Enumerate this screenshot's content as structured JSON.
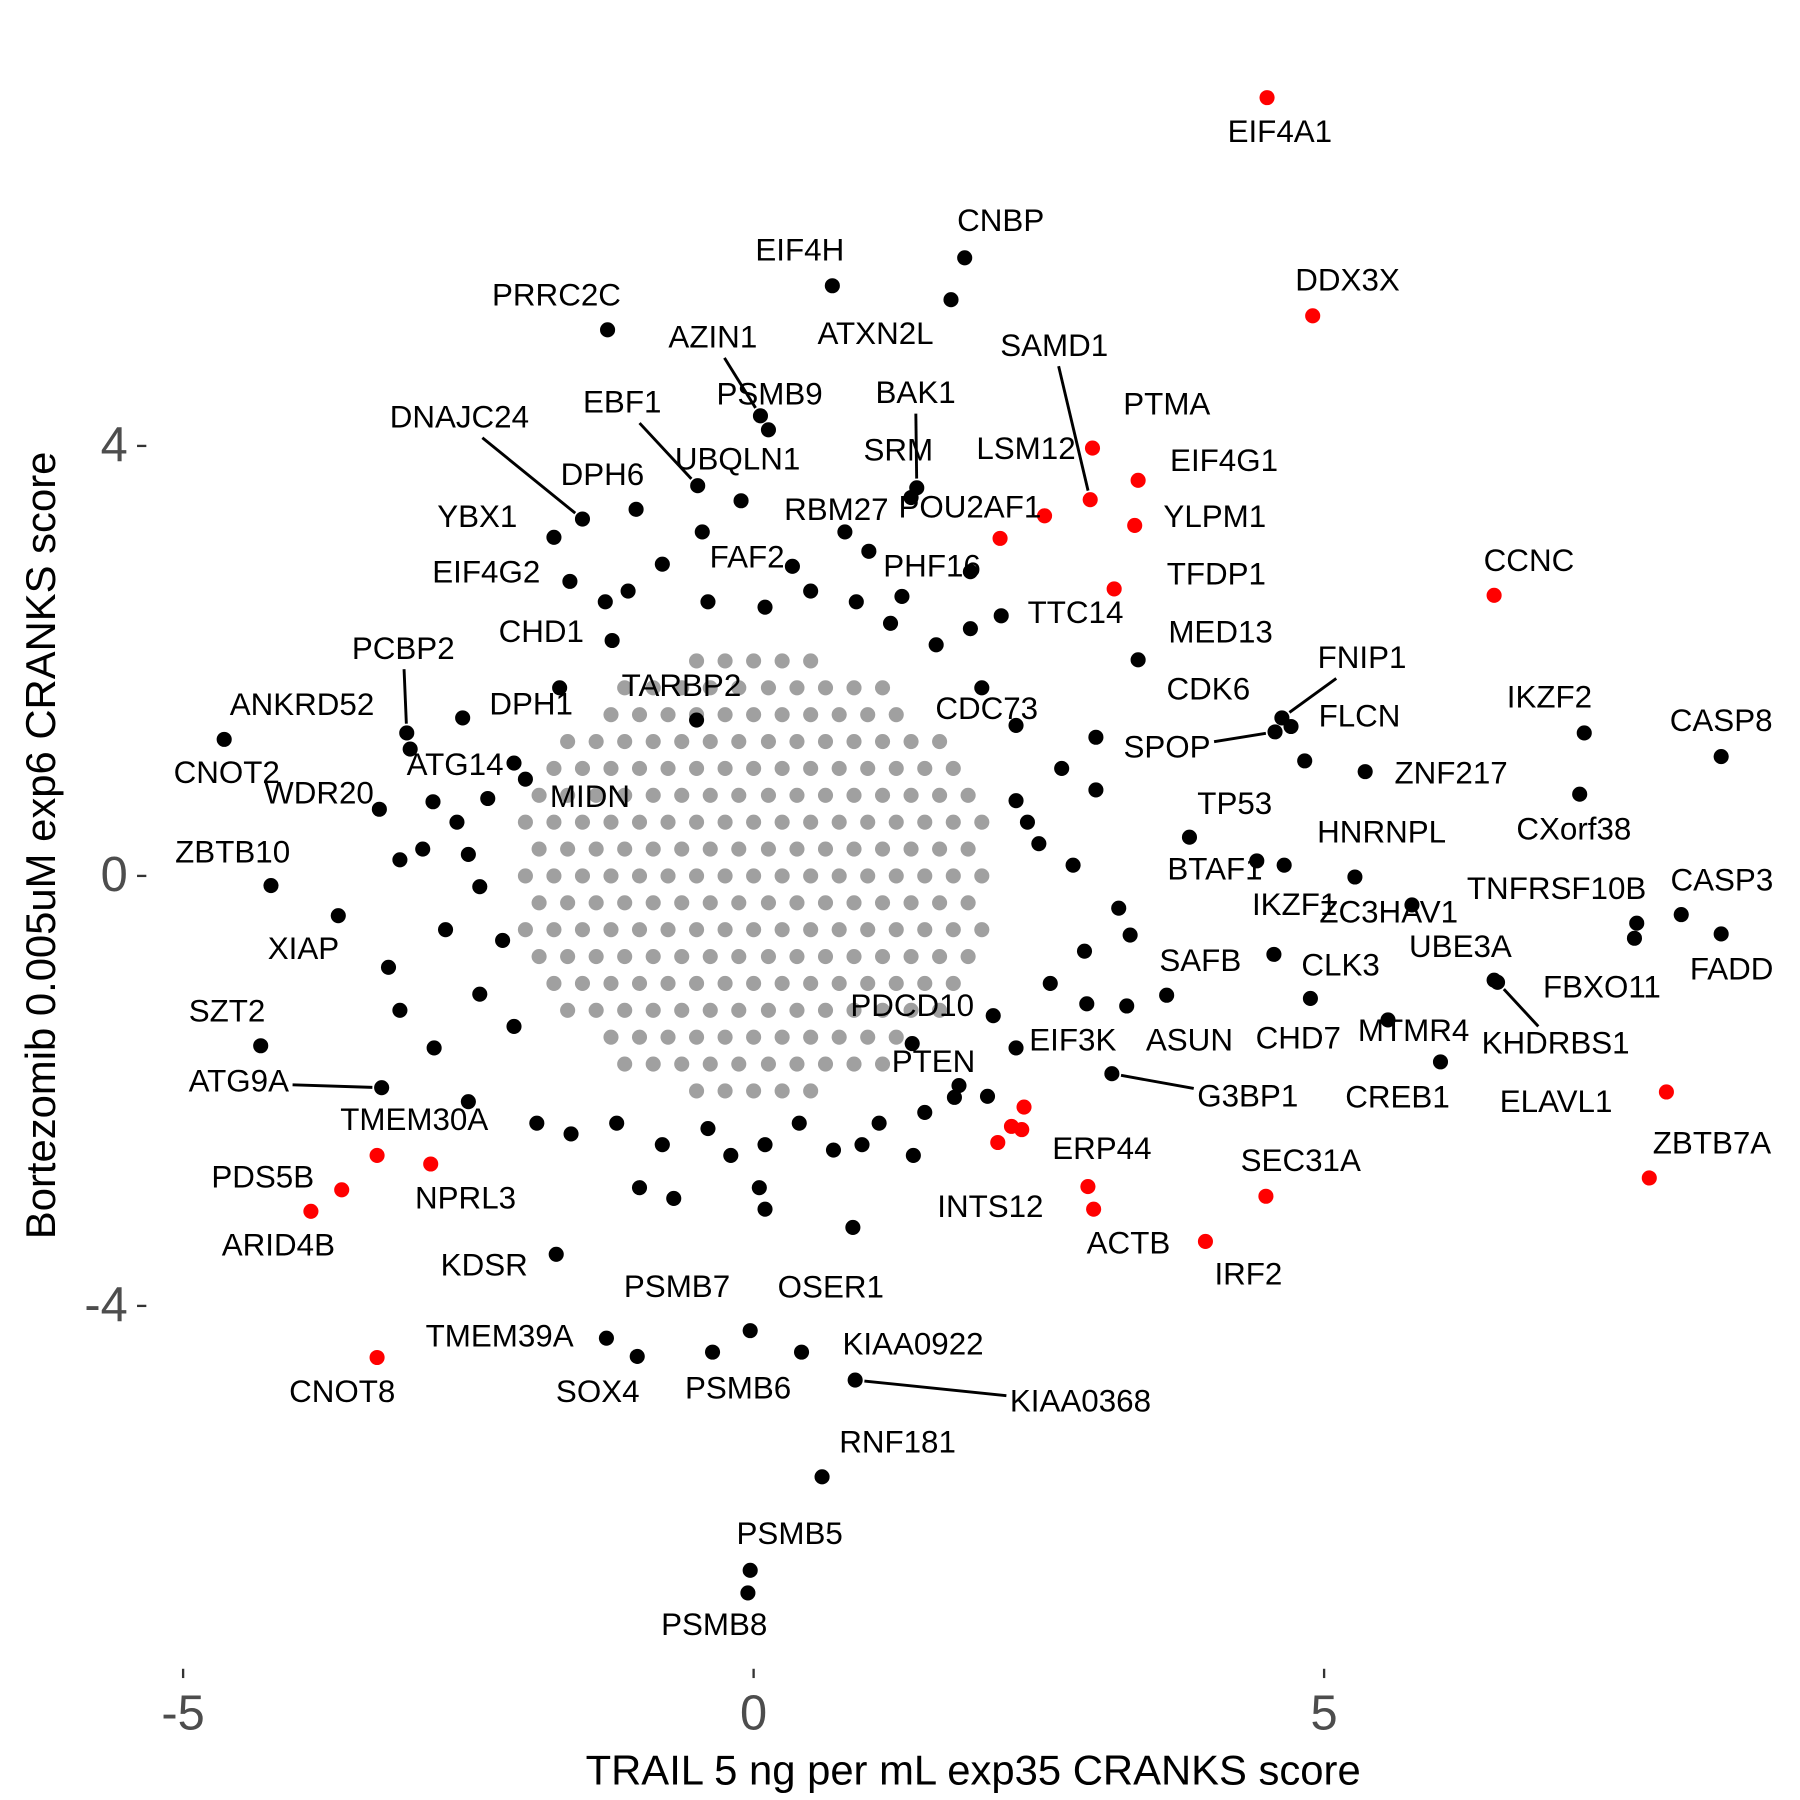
{
  "chart_data": {
    "type": "scatter",
    "xlabel": "TRAIL 5 ng per mL exp35 CRANKS score",
    "ylabel": "Bortezomib 0.005uM exp6 CRANKS score",
    "xlim": [
      -5.18,
      9.12
    ],
    "ylim": [
      -7.3,
      7.5
    ],
    "xticks": [
      -5,
      0,
      5
    ],
    "yticks": [
      -4,
      0,
      4
    ],
    "grid": false,
    "series": [
      {
        "color": "#a0a0a0",
        "x": [
          -0.5,
          -0.25,
          0,
          0.25,
          0.5,
          -1.13,
          -0.88,
          -0.63,
          -0.38,
          -0.13,
          0.13,
          0.38,
          0.63,
          0.88,
          1.13,
          -1.25,
          -1,
          -0.75,
          -0.5,
          -0.25,
          0,
          0.25,
          0.5,
          0.75,
          1,
          1.25,
          -1.63,
          -1.38,
          -1.13,
          -0.88,
          -0.63,
          -0.38,
          -0.13,
          0.13,
          0.38,
          0.63,
          0.88,
          1.13,
          1.38,
          1.63,
          -1.75,
          -1.5,
          -1.25,
          -1,
          -0.75,
          -0.5,
          -0.25,
          0,
          0.25,
          0.5,
          0.75,
          1,
          1.25,
          1.5,
          1.75,
          -1.88,
          -1.63,
          -1.38,
          -1.13,
          -0.88,
          -0.63,
          -0.38,
          -0.13,
          0.13,
          0.38,
          0.63,
          0.88,
          1.13,
          1.38,
          1.63,
          1.88,
          -2,
          -1.75,
          -1.5,
          -1.25,
          -1,
          -0.75,
          -0.5,
          -0.25,
          0,
          0.25,
          0.5,
          0.75,
          1,
          1.25,
          1.5,
          1.75,
          2,
          -1.88,
          -1.63,
          -1.38,
          -1.13,
          -0.88,
          -0.63,
          -0.38,
          -0.13,
          0.13,
          0.38,
          0.63,
          0.88,
          1.13,
          1.38,
          1.63,
          1.88,
          -2,
          -1.75,
          -1.5,
          -1.25,
          -1,
          -0.75,
          -0.5,
          -0.25,
          0,
          0.25,
          0.5,
          0.75,
          1,
          1.25,
          1.5,
          1.75,
          2,
          -1.88,
          -1.63,
          -1.38,
          -1.13,
          -0.88,
          -0.63,
          -0.38,
          -0.13,
          0.13,
          0.38,
          0.63,
          0.88,
          1.13,
          1.38,
          1.63,
          1.88,
          -2,
          -1.75,
          -1.5,
          -1.25,
          -1,
          -0.75,
          -0.5,
          -0.25,
          0,
          0.25,
          0.5,
          0.75,
          1,
          1.25,
          1.5,
          1.75,
          2,
          -1.88,
          -1.63,
          -1.38,
          -1.13,
          -0.88,
          -0.63,
          -0.38,
          -0.13,
          0.13,
          0.38,
          0.63,
          0.88,
          1.13,
          1.38,
          1.63,
          1.88,
          -1.75,
          -1.5,
          -1.25,
          -1,
          -0.75,
          -0.5,
          -0.25,
          0,
          0.25,
          0.5,
          0.75,
          1,
          1.25,
          1.5,
          1.75,
          -1.63,
          -1.38,
          -1.13,
          -0.88,
          -0.63,
          -0.38,
          -0.13,
          0.13,
          0.38,
          0.63,
          0.88,
          1.13,
          1.38,
          1.63,
          -1.25,
          -1,
          -0.75,
          -0.5,
          -0.25,
          0,
          0.25,
          0.5,
          0.75,
          1,
          1.25,
          -1.13,
          -0.88,
          -0.63,
          -0.38,
          -0.13,
          0.13,
          0.38,
          0.63,
          0.88,
          1.13,
          -0.5,
          -0.25,
          0,
          0.25,
          0.5
        ],
        "y": [
          -2,
          -2,
          -2,
          -2,
          -2,
          -1.75,
          -1.75,
          -1.75,
          -1.75,
          -1.75,
          -1.75,
          -1.75,
          -1.75,
          -1.75,
          -1.75,
          -1.5,
          -1.5,
          -1.5,
          -1.5,
          -1.5,
          -1.5,
          -1.5,
          -1.5,
          -1.5,
          -1.5,
          -1.5,
          -1.25,
          -1.25,
          -1.25,
          -1.25,
          -1.25,
          -1.25,
          -1.25,
          -1.25,
          -1.25,
          -1.25,
          -1.25,
          -1.25,
          -1.25,
          -1.25,
          -1,
          -1,
          -1,
          -1,
          -1,
          -1,
          -1,
          -1,
          -1,
          -1,
          -1,
          -1,
          -1,
          -1,
          -1,
          -0.75,
          -0.75,
          -0.75,
          -0.75,
          -0.75,
          -0.75,
          -0.75,
          -0.75,
          -0.75,
          -0.75,
          -0.75,
          -0.75,
          -0.75,
          -0.75,
          -0.75,
          -0.75,
          -0.5,
          -0.5,
          -0.5,
          -0.5,
          -0.5,
          -0.5,
          -0.5,
          -0.5,
          -0.5,
          -0.5,
          -0.5,
          -0.5,
          -0.5,
          -0.5,
          -0.5,
          -0.5,
          -0.5,
          -0.25,
          -0.25,
          -0.25,
          -0.25,
          -0.25,
          -0.25,
          -0.25,
          -0.25,
          -0.25,
          -0.25,
          -0.25,
          -0.25,
          -0.25,
          -0.25,
          -0.25,
          -0.25,
          0,
          0,
          0,
          0,
          0,
          0,
          0,
          0,
          0,
          0,
          0,
          0,
          0,
          0,
          0,
          0,
          0,
          0.25,
          0.25,
          0.25,
          0.25,
          0.25,
          0.25,
          0.25,
          0.25,
          0.25,
          0.25,
          0.25,
          0.25,
          0.25,
          0.25,
          0.25,
          0.25,
          0.5,
          0.5,
          0.5,
          0.5,
          0.5,
          0.5,
          0.5,
          0.5,
          0.5,
          0.5,
          0.5,
          0.5,
          0.5,
          0.5,
          0.5,
          0.5,
          0.5,
          0.75,
          0.75,
          0.75,
          0.75,
          0.75,
          0.75,
          0.75,
          0.75,
          0.75,
          0.75,
          0.75,
          0.75,
          0.75,
          0.75,
          0.75,
          0.75,
          1,
          1,
          1,
          1,
          1,
          1,
          1,
          1,
          1,
          1,
          1,
          1,
          1,
          1,
          1,
          1.25,
          1.25,
          1.25,
          1.25,
          1.25,
          1.25,
          1.25,
          1.25,
          1.25,
          1.25,
          1.25,
          1.25,
          1.25,
          1.25,
          1.5,
          1.5,
          1.5,
          1.5,
          1.5,
          1.5,
          1.5,
          1.5,
          1.5,
          1.5,
          1.5,
          1.75,
          1.75,
          1.75,
          1.75,
          1.75,
          1.75,
          1.75,
          1.75,
          1.75,
          1.75,
          2,
          2,
          2,
          2,
          2
        ]
      },
      {
        "color": "#000000",
        "labels": [
          "CNBP",
          "EIF4H",
          "ATXN2L",
          "PRRC2C",
          "AZIN1",
          "PSMB9",
          "BAK1",
          "SRM",
          "DNAJC24",
          "DPH6",
          "EBF1",
          "UBQLN1",
          "YBX1",
          "EIF4G2",
          "FAF2",
          "RBM27",
          "PHF16",
          "TTC14",
          "CHD1",
          "MED13",
          "PCBP2",
          "ANKRD52",
          "DPH1",
          "TARBP2",
          "CDC73",
          "FNIP1",
          "FLCN",
          "CDK6",
          "SPOP",
          "IKZF2",
          "CASP8",
          "ZNF217",
          "CXorf38",
          "CNOT2",
          "ATG14",
          "WDR20",
          "MIDN",
          "TP53",
          "HNRNPL",
          "BTAF1",
          "IKZF1",
          "ZC3HAV1",
          "TNFRSF10B",
          "CASP3",
          "FADD",
          "FBXO11",
          "UBE3A",
          "KHDRBS1",
          "ZBTB10",
          "XIAP",
          "SAFB",
          "CLK3",
          "CHD7",
          "MTMR4",
          "CREB1",
          "PDCD10",
          "EIF3K",
          "ASUN",
          "SZT2",
          "PTEN",
          "G3BP1",
          "ATG9A",
          "KDSR",
          "PSMB7",
          "OSER1",
          "TMEM39A",
          "SOX4",
          "PSMB6",
          "KIAA0922",
          "KIAA0368",
          "RNF181",
          "PSMB5",
          "PSMB8"
        ],
        "x": [
          1.85,
          0.69,
          1.73,
          -1.28,
          0.06,
          0.13,
          1.43,
          1.38,
          -1.5,
          -1.03,
          -0.49,
          -0.11,
          -1.75,
          -1.61,
          0.34,
          1.01,
          1.9,
          2.17,
          -1.24,
          3.37,
          -3.04,
          -4.64,
          -2.55,
          -0.5,
          3,
          4.63,
          4.71,
          4.83,
          4.57,
          7.28,
          8.48,
          5.36,
          7.24,
          -3.01,
          -2.81,
          -3.28,
          -2.33,
          3.82,
          5.27,
          4.41,
          4.65,
          5.77,
          7.74,
          8.13,
          8.48,
          7.72,
          6.49,
          6.52,
          -4.23,
          -3.64,
          3.62,
          4.88,
          4.56,
          5.56,
          6.02,
          1.39,
          2.92,
          3.27,
          -4.32,
          1.76,
          3.14,
          -3.26,
          -1.73,
          -0.03,
          0.87,
          -1.29,
          -1.02,
          -0.36,
          0.42,
          0.89,
          0.6,
          -0.03,
          -0.05
        ],
        "y": [
          5.75,
          5.49,
          5.36,
          5.08,
          4.28,
          4.15,
          3.61,
          3.52,
          3.32,
          3.41,
          3.63,
          3.49,
          3.15,
          2.74,
          2.88,
          3.02,
          2.83,
          2.42,
          2.19,
          2.01,
          1.33,
          1.27,
          1.47,
          1.45,
          1.29,
          1.47,
          1.39,
          1.07,
          1.34,
          1.33,
          1.11,
          0.97,
          0.76,
          1.18,
          0.69,
          0.62,
          0.72,
          0.36,
          -0.01,
          0.14,
          0.1,
          -0.27,
          -0.44,
          -0.36,
          -0.54,
          -0.58,
          -0.97,
          -0.99,
          -0.09,
          -0.37,
          -1.11,
          -1.14,
          -0.73,
          -1.34,
          -1.73,
          -1.56,
          -1.19,
          -1.21,
          -1.58,
          -2.06,
          -1.84,
          -1.97,
          -3.52,
          -4.23,
          -3.27,
          -4.3,
          -4.47,
          -4.43,
          -4.43,
          -4.69,
          -5.59,
          -6.46,
          -6.67
        ]
      },
      {
        "color": "#000000",
        "x": [
          -2.6,
          -2.5,
          -3.1,
          -2.9,
          -2.4,
          -2.7,
          -2.2,
          -3.2,
          -2.4,
          -3.1,
          -2.8,
          -2.1,
          -2.5,
          -1.9,
          -1.6,
          -1.2,
          -0.8,
          -0.4,
          -0.2,
          0.1,
          0.05,
          0.1,
          0.4,
          0.7,
          0.95,
          1.1,
          1.5,
          1.8,
          2.3,
          2.6,
          2.9,
          3.2,
          2.8,
          2.4,
          2.3,
          2.5,
          3,
          2.7,
          2.3,
          2,
          1.6,
          1.2,
          0.9,
          0.5,
          0.1,
          -0.4,
          -0.8,
          -1.1,
          -1.3,
          -0.45,
          0.8,
          1.3,
          1.9,
          -1.7,
          -2.1,
          -2,
          3.3,
          2.1,
          -1,
          -0.7,
          1.4,
          2.05
        ],
        "y": [
          0.5,
          0.2,
          0.15,
          0.25,
          -0.1,
          -0.5,
          -0.6,
          -0.85,
          -1.1,
          -1.25,
          -1.6,
          -1.4,
          -2.1,
          -2.3,
          -2.4,
          -2.3,
          -2.5,
          -2.35,
          -2.6,
          -2.5,
          -2.9,
          -3.1,
          -2.3,
          -2.55,
          -2.5,
          -2.3,
          -2.2,
          -1.95,
          -1.6,
          -1,
          -0.7,
          -0.3,
          0.1,
          0.5,
          0.7,
          0.3,
          0.8,
          1,
          1.4,
          1.75,
          2.15,
          2.35,
          2.55,
          2.65,
          2.5,
          2.55,
          2.9,
          2.65,
          2.55,
          3.2,
          3.2,
          2.6,
          2.3,
          1.75,
          1.05,
          0.9,
          -0.55,
          -1.3,
          -2.9,
          -3,
          -2.6,
          -2.05
        ]
      },
      {
        "color": "#ff0000",
        "labels": [
          "EIF4A1",
          "DDX3X",
          "SAMD1",
          "PTMA",
          "LSM12",
          "EIF4G1",
          "YLPM1",
          "POU2AF1",
          "TFDP1",
          "CCNC",
          "ELAVL1",
          "TMEM30A",
          "NPRL3",
          "PDS5B",
          "ARID4B",
          "ERP44",
          "INTS12",
          "ACTB",
          "IRF2",
          "SEC31A",
          "ZBTB7A",
          "CNOT8",
          null,
          null,
          null
        ],
        "x": [
          4.5,
          4.9,
          2.95,
          2.97,
          2.55,
          3.37,
          3.34,
          2.16,
          3.16,
          6.49,
          8,
          -3.3,
          -2.83,
          -3.61,
          -3.88,
          2.35,
          2.93,
          2.98,
          3.96,
          4.49,
          7.85,
          -3.3,
          2.37,
          2.26,
          2.14
        ],
        "y": [
          7.24,
          5.21,
          3.5,
          3.98,
          3.35,
          3.68,
          3.26,
          3.14,
          2.67,
          2.61,
          -2.01,
          -2.6,
          -2.68,
          -2.92,
          -3.12,
          -2.36,
          -2.89,
          -3.1,
          -3.4,
          -2.98,
          -2.81,
          -4.48,
          -2.15,
          -2.33,
          -2.48
        ]
      }
    ]
  }
}
